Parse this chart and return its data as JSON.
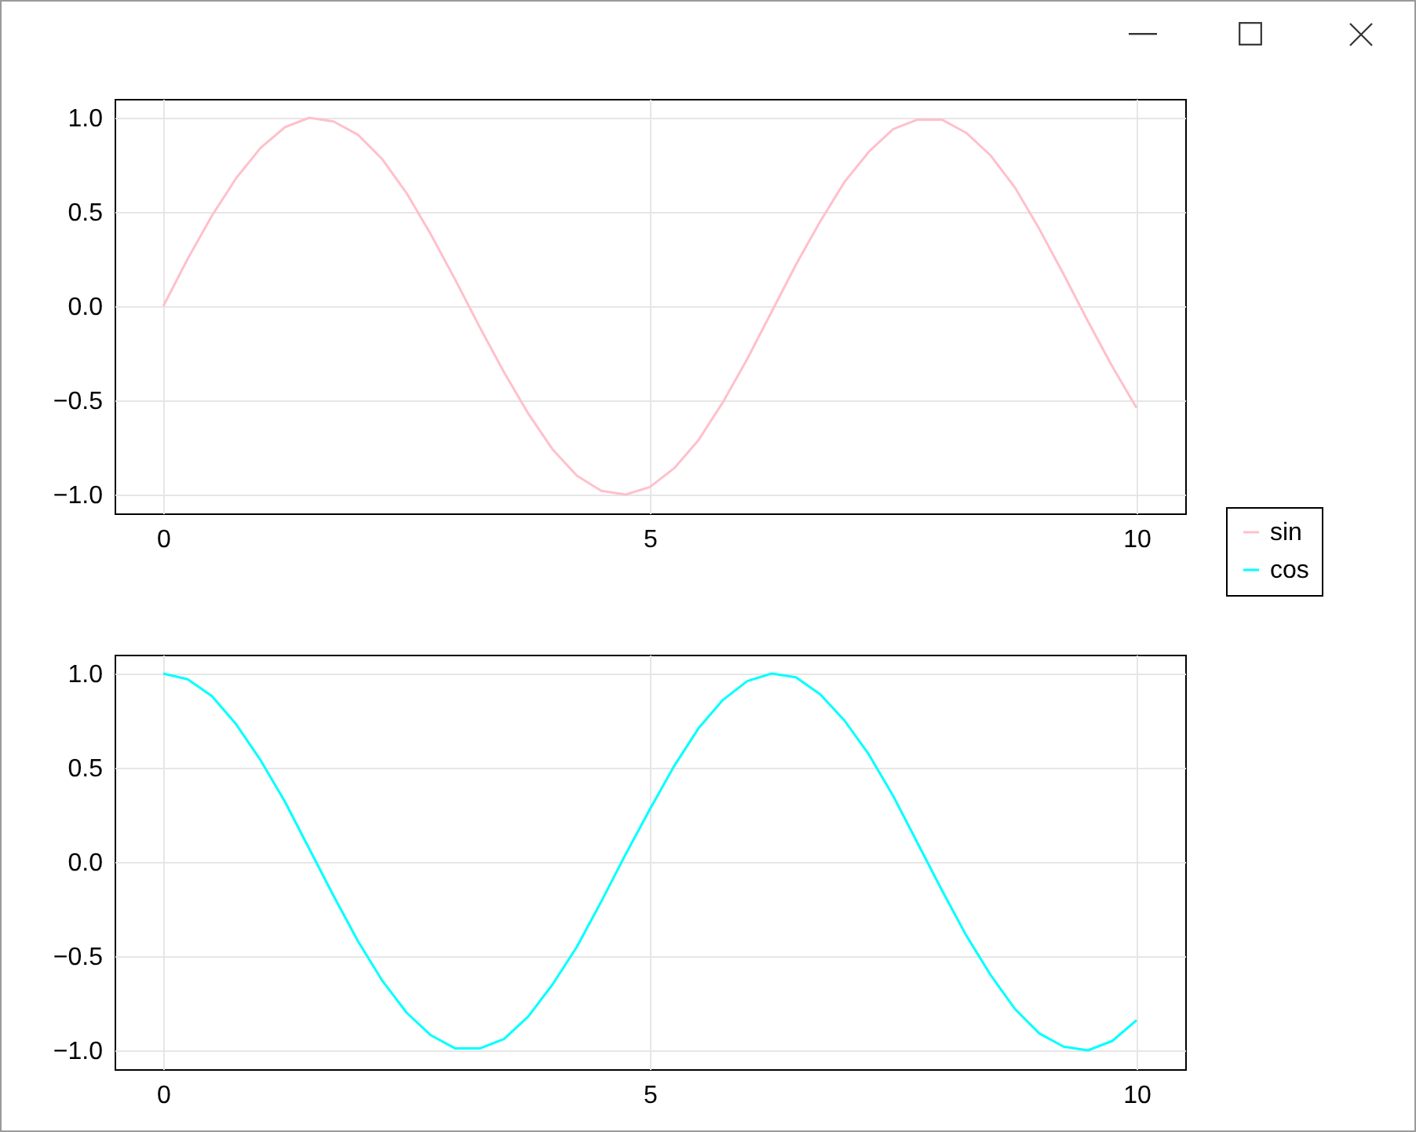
{
  "chart_data": [
    {
      "type": "line",
      "x": [
        0,
        0.25,
        0.5,
        0.75,
        1,
        1.25,
        1.5,
        1.75,
        2,
        2.25,
        2.5,
        2.75,
        3,
        3.25,
        3.5,
        3.75,
        4,
        4.25,
        4.5,
        4.75,
        5,
        5.25,
        5.5,
        5.75,
        6,
        6.25,
        6.5,
        6.75,
        7,
        7.25,
        7.5,
        7.75,
        8,
        8.25,
        8.5,
        8.75,
        9,
        9.25,
        9.5,
        9.75,
        10
      ],
      "series": [
        {
          "name": "sin",
          "color": "#ffc0cb",
          "values": [
            0,
            0.25,
            0.48,
            0.68,
            0.84,
            0.95,
            1.0,
            0.98,
            0.91,
            0.78,
            0.6,
            0.38,
            0.14,
            -0.11,
            -0.35,
            -0.57,
            -0.76,
            -0.9,
            -0.98,
            -1.0,
            -0.96,
            -0.86,
            -0.71,
            -0.51,
            -0.28,
            -0.03,
            0.22,
            0.45,
            0.66,
            0.82,
            0.94,
            0.99,
            0.99,
            0.92,
            0.8,
            0.63,
            0.41,
            0.17,
            -0.08,
            -0.32,
            -0.54
          ]
        }
      ],
      "xlim": [
        -0.5,
        10.5
      ],
      "xticks": [
        0,
        5,
        10
      ],
      "ylim": [
        -1.1,
        1.1
      ],
      "yticks": [
        {
          "value": -1,
          "label": "−1.0"
        },
        {
          "value": -0.5,
          "label": "−0.5"
        },
        {
          "value": 0,
          "label": "0.0"
        },
        {
          "value": 0.5,
          "label": "0.5"
        },
        {
          "value": 1,
          "label": "1.0"
        }
      ],
      "grid": true,
      "legend": "right"
    },
    {
      "type": "line",
      "x": [
        0,
        0.25,
        0.5,
        0.75,
        1,
        1.25,
        1.5,
        1.75,
        2,
        2.25,
        2.5,
        2.75,
        3,
        3.25,
        3.5,
        3.75,
        4,
        4.25,
        4.5,
        4.75,
        5,
        5.25,
        5.5,
        5.75,
        6,
        6.25,
        6.5,
        6.75,
        7,
        7.25,
        7.5,
        7.75,
        8,
        8.25,
        8.5,
        8.75,
        9,
        9.25,
        9.5,
        9.75,
        10
      ],
      "series": [
        {
          "name": "cos",
          "color": "#00ffff",
          "values": [
            1.0,
            0.97,
            0.88,
            0.73,
            0.54,
            0.32,
            0.07,
            -0.18,
            -0.42,
            -0.63,
            -0.8,
            -0.92,
            -0.99,
            -0.99,
            -0.94,
            -0.82,
            -0.65,
            -0.45,
            -0.21,
            0.04,
            0.28,
            0.51,
            0.71,
            0.86,
            0.96,
            1.0,
            0.98,
            0.89,
            0.75,
            0.57,
            0.35,
            0.1,
            -0.15,
            -0.39,
            -0.6,
            -0.78,
            -0.91,
            -0.98,
            -1.0,
            -0.95,
            -0.84
          ]
        }
      ],
      "xlim": [
        -0.5,
        10.5
      ],
      "xticks": [
        0,
        5,
        10
      ],
      "ylim": [
        -1.1,
        1.1
      ],
      "yticks": [
        {
          "value": -1,
          "label": "−1.0"
        },
        {
          "value": -0.5,
          "label": "−0.5"
        },
        {
          "value": 0,
          "label": "0.0"
        },
        {
          "value": 0.5,
          "label": "0.5"
        },
        {
          "value": 1,
          "label": "1.0"
        }
      ],
      "grid": true,
      "legend": "right"
    }
  ]
}
